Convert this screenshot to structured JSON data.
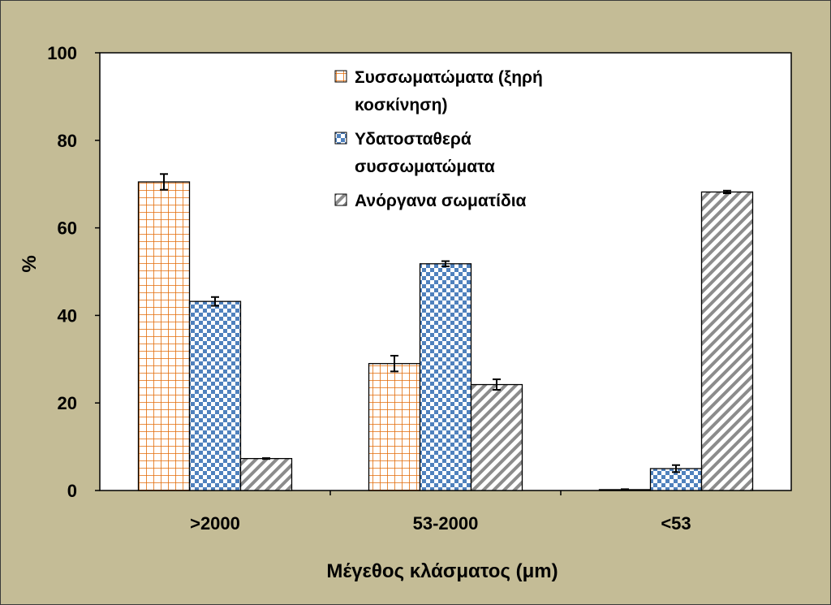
{
  "chart_data": {
    "type": "bar",
    "xlabel": "Μέγεθος κλάσματος (μm)",
    "ylabel": "%",
    "ylim": [
      0,
      100
    ],
    "yticks": [
      0,
      20,
      40,
      60,
      80,
      100
    ],
    "categories": [
      ">2000",
      "53-2000",
      "<53"
    ],
    "grid": false,
    "legend_position": "top-center",
    "series": [
      {
        "name_lines": [
          "Συσσωματώματα (ξηρή",
          "κοσκίνηση)"
        ],
        "values": [
          70.5,
          29.0,
          0.2
        ],
        "errors": [
          1.8,
          1.8,
          0.1
        ],
        "pattern": "grid",
        "color": "#e36c09"
      },
      {
        "name_lines": [
          "Υδατοσταθερά",
          "συσσωματώματα"
        ],
        "values": [
          43.2,
          51.8,
          5.0
        ],
        "errors": [
          1.0,
          0.6,
          0.8
        ],
        "pattern": "checker",
        "color": "#4f81bd"
      },
      {
        "name_lines": [
          "Ανόργανα σωματίδια"
        ],
        "values": [
          7.3,
          24.2,
          68.2
        ],
        "errors": [
          0.1,
          1.2,
          0.3
        ],
        "pattern": "diagonal",
        "color": "#7f7f7f"
      }
    ]
  }
}
